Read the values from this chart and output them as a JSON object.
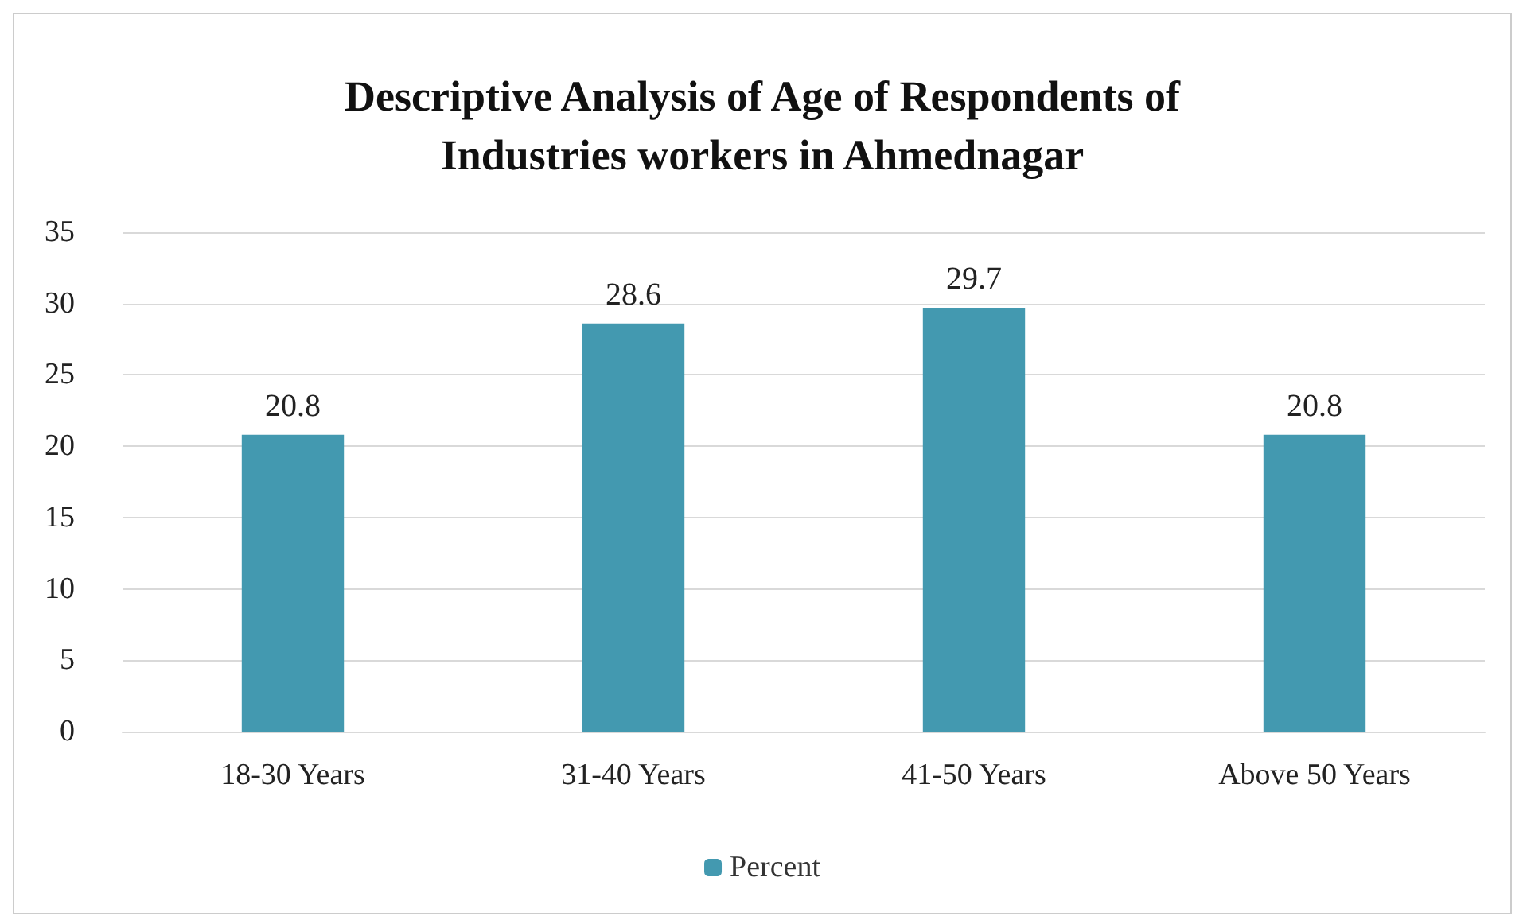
{
  "chart_data": {
    "type": "bar",
    "title": "Descriptive Analysis of Age of Respondents of\nIndustries workers in Ahmednagar",
    "categories": [
      "18-30 Years",
      "31-40 Years",
      "41-50 Years",
      "Above 50 Years"
    ],
    "series": [
      {
        "name": "Percent",
        "color": "#4399b0",
        "values": [
          20.8,
          28.6,
          29.7,
          20.8
        ]
      }
    ],
    "ylim": [
      0,
      35
    ],
    "yticks": [
      0,
      5,
      10,
      15,
      20,
      25,
      30,
      35
    ],
    "grid": "y",
    "legend": "bottom",
    "data_labels": true
  }
}
